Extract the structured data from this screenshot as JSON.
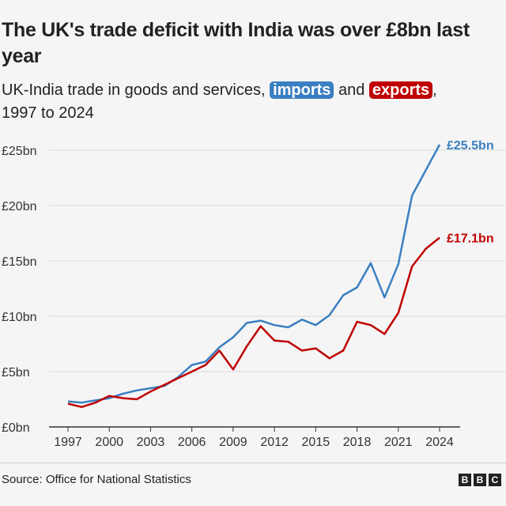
{
  "title": "The UK's trade deficit with India was over £8bn last year",
  "subtitle": {
    "pre": "UK-India trade in goods and services,",
    "imports": "imports",
    "and": "and",
    "exports": "exports",
    "post": ",",
    "range": "1997 to 2024"
  },
  "source": "Source: Office for National Statistics",
  "logo": "BBC",
  "colors": {
    "imports": "#3a7fc1",
    "exports": "#c00000",
    "background": "#f5f5f5"
  },
  "chart_data": {
    "type": "line",
    "x": [
      1997,
      1998,
      1999,
      2000,
      2001,
      2002,
      2003,
      2004,
      2005,
      2006,
      2007,
      2008,
      2009,
      2010,
      2011,
      2012,
      2013,
      2014,
      2015,
      2016,
      2017,
      2018,
      2019,
      2020,
      2021,
      2022,
      2023,
      2024
    ],
    "series": [
      {
        "name": "imports",
        "color": "#3a7fc1",
        "end_label": "£25.5bn",
        "values": [
          2.3,
          2.2,
          2.4,
          2.6,
          3.0,
          3.3,
          3.5,
          3.7,
          4.5,
          5.6,
          5.9,
          7.2,
          8.1,
          9.4,
          9.6,
          9.2,
          9.0,
          9.7,
          9.2,
          10.1,
          11.9,
          12.6,
          14.8,
          11.7,
          14.7,
          20.9,
          23.2,
          25.5
        ]
      },
      {
        "name": "exports",
        "color": "#c00000",
        "end_label": "£17.1bn",
        "values": [
          2.1,
          1.8,
          2.2,
          2.8,
          2.6,
          2.5,
          3.2,
          3.8,
          4.4,
          5.0,
          5.6,
          6.9,
          5.2,
          7.3,
          9.1,
          7.8,
          7.7,
          6.9,
          7.1,
          6.2,
          6.9,
          9.5,
          9.2,
          8.4,
          10.3,
          14.5,
          16.1,
          17.1
        ]
      }
    ],
    "yticks": [
      0,
      5,
      10,
      15,
      20,
      25
    ],
    "ytick_labels": [
      "£0bn",
      "£5bn",
      "£10bn",
      "£15bn",
      "£20bn",
      "£25bn"
    ],
    "xticks": [
      1997,
      2000,
      2003,
      2006,
      2009,
      2012,
      2015,
      2018,
      2021,
      2024
    ],
    "ylim": [
      0,
      25
    ],
    "grid": true
  }
}
